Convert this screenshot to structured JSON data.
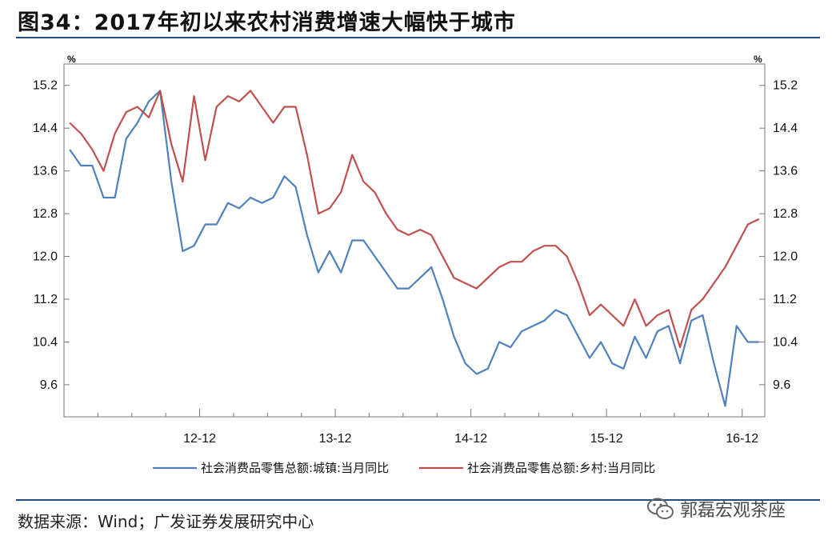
{
  "title": "图34：2017年初以来农村消费增速大幅快于城市",
  "source": "数据来源：Wind；广发证券发展研究中心",
  "watermark": "郭磊宏观茶座",
  "colors": {
    "urban": "#4f81bd",
    "rural": "#c0504d",
    "rule": "#1f4e79"
  },
  "chart_data": {
    "type": "line",
    "title": "2017年初以来农村消费增速大幅快于城市",
    "ylabel_left": "%",
    "ylabel_right": "%",
    "ylim": [
      9.0,
      15.6
    ],
    "yticks": [
      9.6,
      10.4,
      11.2,
      12.0,
      12.8,
      13.6,
      14.4,
      15.2
    ],
    "x_start": "2012-01",
    "x_end": "2017-03",
    "xtick_labels": [
      "12-12",
      "13-12",
      "14-12",
      "15-12",
      "16-12"
    ],
    "legend": "bottom",
    "grid": false,
    "series": [
      {
        "name": "社会消费品零售总额:城镇:当月同比",
        "color": "#4f81bd",
        "values": [
          14.0,
          13.7,
          13.7,
          13.1,
          13.1,
          14.2,
          14.5,
          14.9,
          15.1,
          13.4,
          12.1,
          12.2,
          12.6,
          12.6,
          13.0,
          12.9,
          13.1,
          13.0,
          13.1,
          13.5,
          13.3,
          12.4,
          11.7,
          12.1,
          11.7,
          12.3,
          12.3,
          12.0,
          11.7,
          11.4,
          11.4,
          11.6,
          11.8,
          11.2,
          10.5,
          10.0,
          9.8,
          9.9,
          10.4,
          10.3,
          10.6,
          10.7,
          10.8,
          11.0,
          10.9,
          10.5,
          10.1,
          10.4,
          10.0,
          9.9,
          10.5,
          10.1,
          10.6,
          10.7,
          10.0,
          10.8,
          10.9,
          10.0,
          9.2,
          10.7,
          10.4,
          10.4
        ]
      },
      {
        "name": "社会消费品零售总额:乡村:当月同比",
        "color": "#c0504d",
        "values": [
          14.5,
          14.3,
          14.0,
          13.6,
          14.3,
          14.7,
          14.8,
          14.6,
          15.1,
          14.1,
          13.4,
          15.0,
          13.8,
          14.8,
          15.0,
          14.9,
          15.1,
          14.8,
          14.5,
          14.8,
          14.8,
          13.9,
          12.8,
          12.9,
          13.2,
          13.9,
          13.4,
          13.2,
          12.8,
          12.5,
          12.4,
          12.5,
          12.4,
          12.0,
          11.6,
          11.5,
          11.4,
          11.6,
          11.8,
          11.9,
          11.9,
          12.1,
          12.2,
          12.2,
          12.0,
          11.5,
          10.9,
          11.1,
          10.9,
          10.7,
          11.2,
          10.7,
          10.9,
          11.0,
          10.3,
          11.0,
          11.2,
          11.5,
          11.8,
          12.2,
          12.6,
          12.7
        ]
      }
    ]
  }
}
